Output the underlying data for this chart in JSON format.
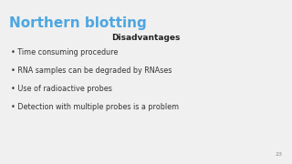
{
  "title": "Northern blotting",
  "title_color": "#4DA6E0",
  "subtitle": "Disadvantages",
  "subtitle_color": "#222222",
  "bullet_points": [
    "Time consuming procedure",
    "RNA samples can be degraded by RNAses",
    "Use of radioactive probes",
    "Detection with multiple probes is a problem"
  ],
  "bullet_color": "#333333",
  "background_color": "#f0f0f0",
  "page_number": "23",
  "title_fontsize": 11,
  "subtitle_fontsize": 6.5,
  "bullet_fontsize": 5.8,
  "page_num_fontsize": 4.5
}
